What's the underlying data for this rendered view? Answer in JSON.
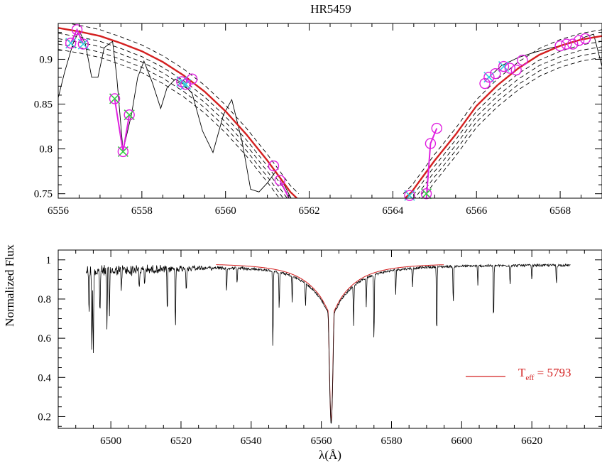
{
  "title": "HR5459",
  "ylabel": "Normalized Flux",
  "xlabel": "λ(Å)",
  "legend": {
    "label_main": "T",
    "label_sub": "eff",
    "label_value": " = 5793",
    "color": "#d42020"
  },
  "colors": {
    "observed": "#000000",
    "model": "#d42020",
    "comparison": "#000000",
    "marker_circle": "#e020e0",
    "marker_cyan": "#30d0e0",
    "marker_green": "#30d040",
    "link": "#e020e0"
  },
  "chart_data": [
    {
      "type": "line",
      "panel": "top",
      "title": "HR5459",
      "xlim": [
        6556,
        6569
      ],
      "ylim": [
        0.745,
        0.94
      ],
      "xticks": [
        6556,
        6558,
        6560,
        6562,
        6564,
        6566,
        6568
      ],
      "yticks": [
        0.75,
        0.8,
        0.85,
        0.9
      ],
      "ytick_labels": [
        "0.75",
        "0.8",
        "0.85",
        "0.9"
      ],
      "observed": {
        "x": [
          6556.0,
          6556.15,
          6556.35,
          6556.5,
          6556.65,
          6556.8,
          6556.95,
          6557.1,
          6557.3,
          6557.4,
          6557.55,
          6557.75,
          6557.9,
          6558.05,
          6558.25,
          6558.45,
          6558.6,
          6558.8,
          6559.0,
          6559.2,
          6559.45,
          6559.7,
          6559.95,
          6560.15,
          6560.4,
          6560.6,
          6560.8,
          6561.0,
          6561.2,
          6561.4,
          6561.6
        ],
        "y": [
          0.857,
          0.885,
          0.917,
          0.932,
          0.917,
          0.88,
          0.88,
          0.913,
          0.92,
          0.88,
          0.798,
          0.838,
          0.88,
          0.898,
          0.874,
          0.845,
          0.868,
          0.878,
          0.872,
          0.862,
          0.82,
          0.796,
          0.838,
          0.855,
          0.807,
          0.755,
          0.752,
          0.762,
          0.775,
          0.76,
          0.742
        ]
      },
      "observed_right": {
        "x": [
          6566.2,
          6566.6,
          6567.0,
          6567.4,
          6567.8,
          6568.1,
          6568.4,
          6568.6,
          6568.8,
          6569.0
        ],
        "y": [
          0.876,
          0.893,
          0.902,
          0.908,
          0.913,
          0.916,
          0.92,
          0.925,
          0.928,
          0.892
        ]
      },
      "model": {
        "left": {
          "x": [
            6556.0,
            6556.5,
            6557.0,
            6557.5,
            6558.0,
            6558.5,
            6559.0,
            6559.5,
            6560.0,
            6560.5,
            6561.0,
            6561.3,
            6561.55,
            6561.75
          ],
          "y": [
            0.935,
            0.931,
            0.926,
            0.918,
            0.909,
            0.897,
            0.882,
            0.864,
            0.842,
            0.816,
            0.787,
            0.768,
            0.752,
            0.743
          ]
        },
        "right": {
          "x": [
            6564.25,
            6564.45,
            6564.7,
            6565.0,
            6565.5,
            6566.0,
            6566.5,
            6567.0,
            6567.5,
            6568.0,
            6568.5,
            6569.0
          ],
          "y": [
            0.743,
            0.752,
            0.768,
            0.787,
            0.816,
            0.848,
            0.871,
            0.89,
            0.905,
            0.915,
            0.922,
            0.926
          ]
        }
      },
      "comparison_offsets": [
        0.007,
        -0.006,
        -0.012,
        -0.018,
        -0.024
      ],
      "markers_circle_cyan": [
        {
          "x": 6556.3,
          "y": 0.918
        },
        {
          "x": 6556.6,
          "y": 0.917
        },
        {
          "x": 6558.95,
          "y": 0.875
        },
        {
          "x": 6559.05,
          "y": 0.872
        },
        {
          "x": 6564.4,
          "y": 0.748
        },
        {
          "x": 6566.3,
          "y": 0.88
        },
        {
          "x": 6566.65,
          "y": 0.892
        }
      ],
      "markers_circle_green": [
        {
          "x": 6557.35,
          "y": 0.856
        },
        {
          "x": 6557.55,
          "y": 0.797
        },
        {
          "x": 6557.7,
          "y": 0.838
        },
        {
          "x": 6564.8,
          "y": 0.75
        }
      ],
      "markers_circle": [
        {
          "x": 6556.45,
          "y": 0.933
        },
        {
          "x": 6559.2,
          "y": 0.878
        },
        {
          "x": 6561.15,
          "y": 0.781
        },
        {
          "x": 6561.3,
          "y": 0.765
        },
        {
          "x": 6564.9,
          "y": 0.806
        },
        {
          "x": 6565.05,
          "y": 0.823
        },
        {
          "x": 6566.2,
          "y": 0.873
        },
        {
          "x": 6566.45,
          "y": 0.884
        },
        {
          "x": 6566.8,
          "y": 0.89
        },
        {
          "x": 6566.95,
          "y": 0.888
        },
        {
          "x": 6567.1,
          "y": 0.899
        },
        {
          "x": 6568.0,
          "y": 0.915
        },
        {
          "x": 6568.15,
          "y": 0.917
        },
        {
          "x": 6568.3,
          "y": 0.917
        },
        {
          "x": 6568.45,
          "y": 0.921
        },
        {
          "x": 6568.6,
          "y": 0.923
        }
      ],
      "links": [
        {
          "x": [
            6556.3,
            6556.45,
            6556.6
          ],
          "y": [
            0.918,
            0.933,
            0.917
          ]
        },
        {
          "x": [
            6557.35,
            6557.55,
            6557.7
          ],
          "y": [
            0.856,
            0.797,
            0.838
          ]
        },
        {
          "x": [
            6561.3,
            6561.55
          ],
          "y": [
            0.765,
            0.742
          ]
        },
        {
          "x": [
            6564.8,
            6564.9,
            6565.05
          ],
          "y": [
            0.743,
            0.806,
            0.823
          ]
        }
      ]
    },
    {
      "type": "line",
      "panel": "bottom",
      "xlabel": "λ(Å)",
      "ylabel": "Normalized Flux",
      "xlim": [
        6485,
        6640
      ],
      "ylim": [
        0.14,
        1.05
      ],
      "xticks": [
        6500,
        6520,
        6540,
        6560,
        6580,
        6600,
        6620
      ],
      "yticks": [
        0.2,
        0.4,
        0.6,
        0.8,
        1.0
      ],
      "ytick_labels": [
        "0.2",
        "0.4",
        "0.6",
        "0.8",
        "1"
      ],
      "range": [
        6493,
        6631
      ],
      "continuum": 0.985,
      "model_range": [
        6530,
        6595
      ],
      "line_center": 6562.8,
      "line_depth": 0.81,
      "line_width": 0.55,
      "wing_strength": 0.16,
      "wing_width": 8,
      "lines": [
        {
          "x": 6493.8,
          "d": 0.22
        },
        {
          "x": 6494.6,
          "d": 0.42
        },
        {
          "x": 6495.0,
          "d": 0.47
        },
        {
          "x": 6496.9,
          "d": 0.24
        },
        {
          "x": 6498.9,
          "d": 0.3
        },
        {
          "x": 6499.6,
          "d": 0.25
        },
        {
          "x": 6503.0,
          "d": 0.1
        },
        {
          "x": 6508.1,
          "d": 0.1
        },
        {
          "x": 6509.6,
          "d": 0.08
        },
        {
          "x": 6516.1,
          "d": 0.25
        },
        {
          "x": 6518.4,
          "d": 0.33
        },
        {
          "x": 6521.5,
          "d": 0.12
        },
        {
          "x": 6533.0,
          "d": 0.12
        },
        {
          "x": 6536.0,
          "d": 0.08
        },
        {
          "x": 6546.2,
          "d": 0.42
        },
        {
          "x": 6548.0,
          "d": 0.2
        },
        {
          "x": 6551.7,
          "d": 0.14
        },
        {
          "x": 6555.5,
          "d": 0.12
        },
        {
          "x": 6569.2,
          "d": 0.2
        },
        {
          "x": 6572.8,
          "d": 0.15
        },
        {
          "x": 6575.0,
          "d": 0.35
        },
        {
          "x": 6581.2,
          "d": 0.12
        },
        {
          "x": 6586.0,
          "d": 0.1
        },
        {
          "x": 6592.9,
          "d": 0.37
        },
        {
          "x": 6597.6,
          "d": 0.2
        },
        {
          "x": 6604.6,
          "d": 0.1
        },
        {
          "x": 6609.1,
          "d": 0.3
        },
        {
          "x": 6613.8,
          "d": 0.1
        },
        {
          "x": 6620.0,
          "d": 0.08
        },
        {
          "x": 6627.0,
          "d": 0.1
        }
      ]
    }
  ]
}
